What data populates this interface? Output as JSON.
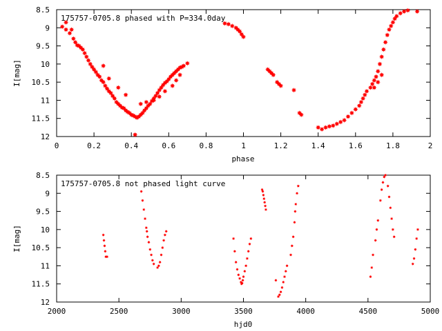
{
  "chart_data": [
    {
      "type": "scatter",
      "title": "175757-0705.8 phased with P=334.0day",
      "xlabel": "phase",
      "ylabel": "I[mag]",
      "xlim": [
        0,
        2
      ],
      "ylim": [
        12,
        8.5
      ],
      "y_inverted": true,
      "x_ticks": [
        0,
        0.2,
        0.4,
        0.6,
        0.8,
        1,
        1.2,
        1.4,
        1.6,
        1.8,
        2
      ],
      "x_tick_labels": [
        "0",
        "0.2",
        "0.4",
        "0.6",
        "0.8",
        "1",
        "1.2",
        "1.4",
        "1.6",
        "1.8",
        "2"
      ],
      "y_ticks": [
        8.5,
        9,
        9.5,
        10,
        10.5,
        11,
        11.5,
        12
      ],
      "y_tick_labels": [
        "8.5",
        "9",
        "9.5",
        "10",
        "10.5",
        "11",
        "11.5",
        "12"
      ],
      "marker": "star",
      "marker_size": "large",
      "color": "#ff0000",
      "grid": false,
      "series": [
        {
          "x": [
            0.03,
            0.05,
            0.07,
            0.09,
            0.1,
            0.11,
            0.12,
            0.13,
            0.14,
            0.15,
            0.16,
            0.17,
            0.18,
            0.19,
            0.2,
            0.21,
            0.22,
            0.23,
            0.24,
            0.25,
            0.26,
            0.27,
            0.28,
            0.29,
            0.3,
            0.31,
            0.32,
            0.33,
            0.34,
            0.35,
            0.36,
            0.37,
            0.38,
            0.39,
            0.4,
            0.41,
            0.42,
            0.43,
            0.44,
            0.45,
            0.46,
            0.47,
            0.48,
            0.49,
            0.5,
            0.51,
            0.52,
            0.53,
            0.54,
            0.55,
            0.56,
            0.57,
            0.58,
            0.59,
            0.6,
            0.61,
            0.62,
            0.63,
            0.64,
            0.65,
            0.66,
            0.67,
            0.68,
            0.7,
            0.05,
            0.08,
            0.25,
            0.28,
            0.33,
            0.37,
            0.42,
            0.45,
            0.48,
            0.52,
            0.55,
            0.58,
            0.62,
            0.64,
            0.66,
            0.9,
            0.92,
            0.94,
            0.96,
            0.97,
            0.98,
            0.99,
            1.0,
            1.13,
            1.14,
            1.15,
            1.16,
            1.18,
            1.19,
            1.2,
            1.27,
            1.3,
            1.31,
            1.4,
            1.42,
            1.44,
            1.46,
            1.48,
            1.5,
            1.52,
            1.54,
            1.56,
            1.58,
            1.6,
            1.62,
            1.63,
            1.64,
            1.65,
            1.66,
            1.68,
            1.69,
            1.7,
            1.71,
            1.72,
            1.73,
            1.74,
            1.75,
            1.76,
            1.77,
            1.78,
            1.79,
            1.8,
            1.81,
            1.82,
            1.84,
            1.86,
            1.88,
            1.93,
            1.7,
            1.72,
            1.74
          ],
          "y": [
            8.97,
            9.05,
            9.15,
            9.3,
            9.4,
            9.48,
            9.5,
            9.55,
            9.6,
            9.7,
            9.8,
            9.9,
            10.0,
            10.08,
            10.15,
            10.22,
            10.3,
            10.35,
            10.45,
            10.5,
            10.6,
            10.68,
            10.75,
            10.8,
            10.88,
            10.95,
            11.05,
            11.1,
            11.15,
            11.2,
            11.22,
            11.28,
            11.32,
            11.35,
            11.4,
            11.42,
            11.45,
            11.48,
            11.45,
            11.4,
            11.35,
            11.28,
            11.22,
            11.15,
            11.1,
            11.02,
            10.95,
            10.88,
            10.8,
            10.72,
            10.65,
            10.58,
            10.52,
            10.48,
            10.42,
            10.35,
            10.3,
            10.25,
            10.2,
            10.15,
            10.1,
            10.08,
            10.05,
            9.98,
            8.85,
            9.05,
            10.05,
            10.4,
            10.65,
            10.85,
            11.95,
            11.1,
            11.05,
            11.0,
            10.9,
            10.75,
            10.6,
            10.45,
            10.3,
            8.88,
            8.9,
            8.95,
            9.0,
            9.05,
            9.1,
            9.18,
            9.25,
            10.15,
            10.2,
            10.25,
            10.3,
            10.5,
            10.55,
            10.6,
            10.72,
            11.35,
            11.4,
            11.75,
            11.8,
            11.75,
            11.72,
            11.7,
            11.65,
            11.6,
            11.55,
            11.45,
            11.35,
            11.25,
            11.15,
            11.05,
            10.95,
            10.85,
            10.75,
            10.65,
            10.55,
            10.45,
            10.35,
            10.2,
            10.0,
            9.8,
            9.6,
            9.4,
            9.2,
            9.05,
            8.95,
            8.85,
            8.75,
            8.68,
            8.6,
            8.55,
            8.52,
            8.55,
            10.65,
            10.5,
            10.3
          ]
        }
      ]
    },
    {
      "type": "scatter",
      "title": "175757-0705.8 not phased light curve",
      "xlabel": "hjd0",
      "ylabel": "I[mag]",
      "xlim": [
        2000,
        5000
      ],
      "ylim": [
        12,
        8.5
      ],
      "y_inverted": true,
      "x_ticks": [
        2000,
        2500,
        3000,
        3500,
        4000,
        4500,
        5000
      ],
      "x_tick_labels": [
        "2000",
        "2500",
        "3000",
        "3500",
        "4000",
        "4500",
        "5000"
      ],
      "y_ticks": [
        8.5,
        9,
        9.5,
        10,
        10.5,
        11,
        11.5,
        12
      ],
      "y_tick_labels": [
        "8.5",
        "9",
        "9.5",
        "10",
        "10.5",
        "11",
        "11.5",
        "12"
      ],
      "marker": "star",
      "marker_size": "small",
      "color": "#ff0000",
      "grid": false,
      "series": [
        {
          "x": [
            2375,
            2380,
            2385,
            2390,
            2395,
            2405,
            2680,
            2690,
            2700,
            2710,
            2720,
            2725,
            2730,
            2740,
            2750,
            2760,
            2770,
            2780,
            2810,
            2820,
            2830,
            2840,
            2850,
            2860,
            2870,
            2880,
            3420,
            3430,
            3440,
            3450,
            3460,
            3470,
            3480,
            3485,
            3490,
            3495,
            3500,
            3510,
            3520,
            3530,
            3540,
            3550,
            3560,
            3650,
            3655,
            3660,
            3665,
            3670,
            3675,
            3680,
            3760,
            3780,
            3790,
            3800,
            3810,
            3820,
            3830,
            3840,
            3850,
            3880,
            3890,
            3900,
            3910,
            3915,
            3920,
            3930,
            3940,
            4520,
            4530,
            4540,
            4560,
            4570,
            4580,
            4600,
            4610,
            4620,
            4630,
            4640,
            4660,
            4670,
            4680,
            4690,
            4700,
            4710,
            4860,
            4870,
            4880,
            4890,
            4900
          ],
          "y": [
            10.15,
            10.3,
            10.45,
            10.6,
            10.75,
            10.75,
            8.95,
            9.2,
            9.45,
            9.7,
            9.95,
            10.05,
            10.2,
            10.35,
            10.55,
            10.7,
            10.85,
            10.95,
            11.05,
            11.0,
            10.9,
            10.7,
            10.5,
            10.3,
            10.15,
            10.05,
            10.25,
            10.6,
            10.9,
            11.1,
            11.25,
            11.35,
            11.45,
            11.5,
            11.48,
            11.4,
            11.3,
            11.15,
            11.0,
            10.8,
            10.6,
            10.4,
            10.25,
            8.9,
            8.95,
            9.05,
            9.15,
            9.25,
            9.35,
            9.45,
            11.4,
            11.85,
            11.8,
            11.72,
            11.6,
            11.45,
            11.3,
            11.15,
            11.0,
            10.7,
            10.45,
            10.2,
            9.8,
            9.5,
            9.3,
            9.0,
            8.8,
            11.3,
            11.05,
            10.7,
            10.3,
            10.0,
            9.75,
            9.2,
            8.9,
            8.7,
            8.55,
            8.5,
            8.8,
            9.1,
            9.4,
            9.7,
            10.0,
            10.2,
            10.95,
            10.8,
            10.55,
            10.25,
            10.0
          ]
        }
      ]
    }
  ]
}
